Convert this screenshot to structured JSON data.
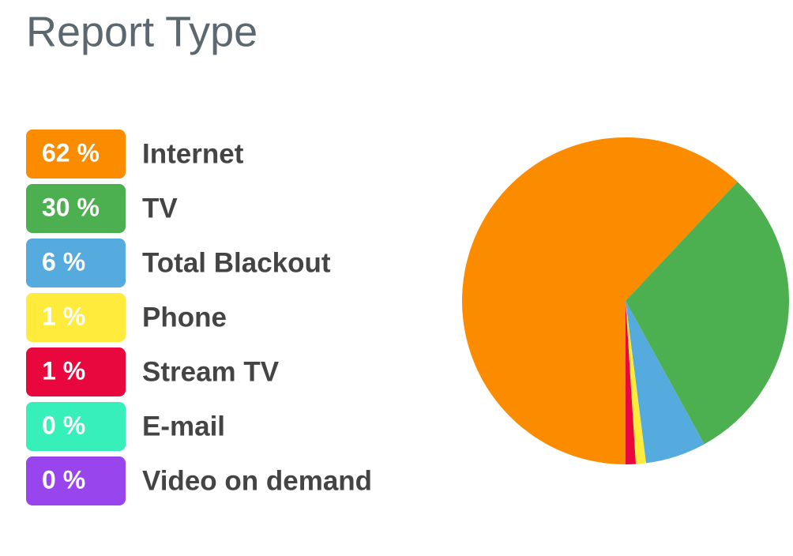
{
  "chart_data": {
    "type": "pie",
    "title": "Report Type",
    "categories": [
      "Internet",
      "TV",
      "Total Blackout",
      "Phone",
      "Stream TV",
      "E-mail",
      "Video on demand"
    ],
    "values": [
      62,
      30,
      6,
      1,
      1,
      0,
      0
    ],
    "value_labels": [
      "62 %",
      "30 %",
      "6 %",
      "1 %",
      "1 %",
      "0 %",
      "0 %"
    ],
    "colors": [
      "#fb8c00",
      "#4caf50",
      "#55aade",
      "#ffeb3b",
      "#e8083e",
      "#36efb9",
      "#9945ee"
    ]
  }
}
